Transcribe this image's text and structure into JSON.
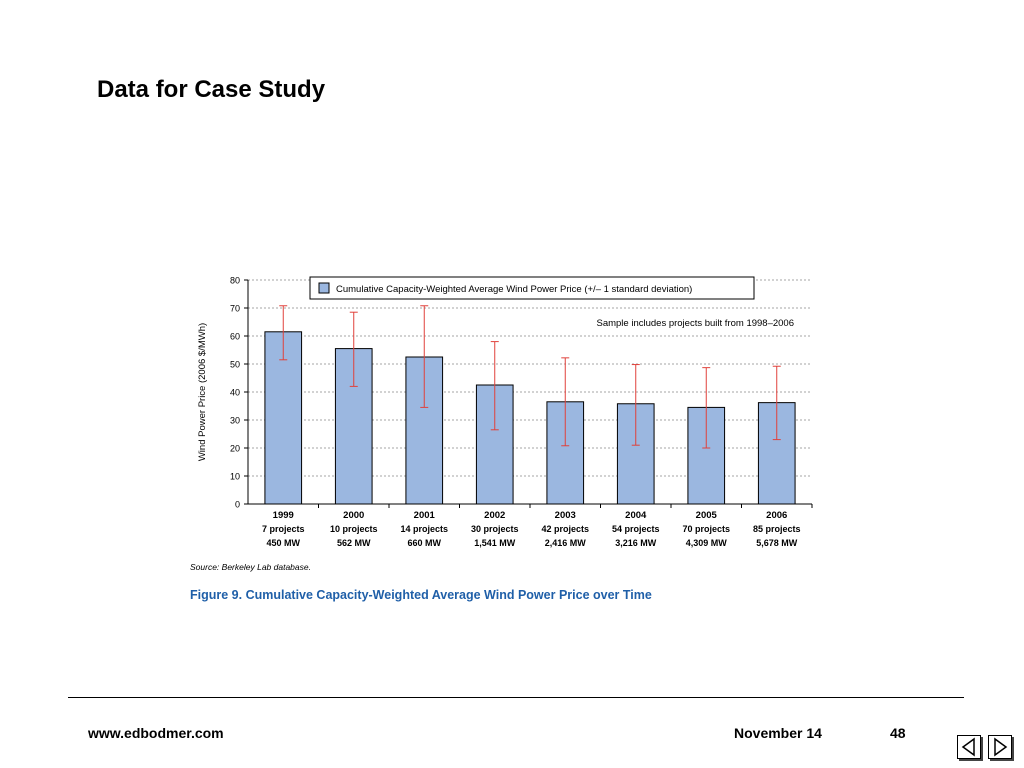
{
  "slide": {
    "title": "Data for Case Study"
  },
  "chart_data": {
    "type": "bar",
    "categories": [
      "1999",
      "2000",
      "2001",
      "2002",
      "2003",
      "2004",
      "2005",
      "2006"
    ],
    "category_details": [
      [
        "7 projects",
        "450 MW"
      ],
      [
        "10 projects",
        "562 MW"
      ],
      [
        "14 projects",
        "660 MW"
      ],
      [
        "30 projects",
        "1,541 MW"
      ],
      [
        "42 projects",
        "2,416 MW"
      ],
      [
        "54 projects",
        "3,216 MW"
      ],
      [
        "70 projects",
        "4,309 MW"
      ],
      [
        "85 projects",
        "5,678 MW"
      ]
    ],
    "values": [
      61.5,
      55.5,
      52.5,
      42.5,
      36.5,
      35.8,
      34.5,
      36.2
    ],
    "error_low": [
      51.5,
      42,
      34.5,
      26.5,
      20.8,
      21,
      20,
      23
    ],
    "error_high": [
      70.8,
      68.5,
      70.8,
      58,
      52.2,
      49.8,
      48.7,
      49.2
    ],
    "ylabel": "Wind Power Price (2006 $/MWh)",
    "ylim": [
      0,
      80
    ],
    "yticks": [
      0,
      10,
      20,
      30,
      40,
      50,
      60,
      70,
      80
    ],
    "legend": "Cumulative Capacity-Weighted Average Wind Power Price (+/– 1 standard deviation)",
    "legend_position": "top",
    "annotation": "Sample includes projects built from 1998–2006",
    "source": "Source: Berkeley Lab database.",
    "caption": "Figure 9.  Cumulative Capacity-Weighted Average Wind Power Price over Time",
    "grid": "horizontal dotted",
    "colors": {
      "bar_fill": "#9bb7e0",
      "bar_stroke": "#000000",
      "error_bar": "#e0413b",
      "caption": "#1f5fa8",
      "grid": "#888888"
    }
  },
  "footer": {
    "url": "www.edbodmer.com",
    "date": "November 14",
    "page": "48"
  }
}
